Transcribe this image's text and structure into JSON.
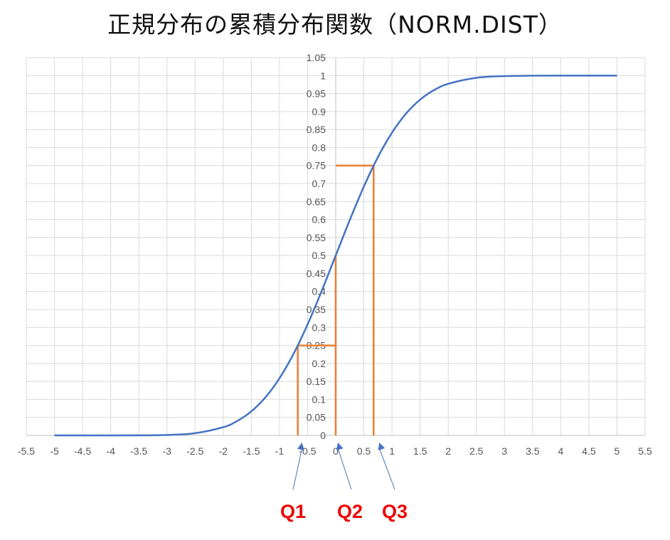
{
  "chart_data": {
    "type": "line",
    "title": "正規分布の累積分布関数（NORM.DIST）",
    "xlabel": "",
    "ylabel": "",
    "xlim": [
      -5.5,
      5.5
    ],
    "ylim": [
      0,
      1.05
    ],
    "grid": true,
    "x_ticks": [
      "-5.5",
      "-5",
      "-4.5",
      "-4",
      "-3.5",
      "-3",
      "-2.5",
      "-2",
      "-1.5",
      "-1",
      "-0.5",
      "0",
      "0.5",
      "1",
      "1.5",
      "2",
      "2.5",
      "3",
      "3.5",
      "4",
      "4.5",
      "5",
      "5.5"
    ],
    "y_ticks": [
      "0",
      "0.05",
      "0.1",
      "0.15",
      "0.2",
      "0.25",
      "0.3",
      "0.35",
      "0.4",
      "0.45",
      "0.5",
      "0.55",
      "0.6",
      "0.65",
      "0.7",
      "0.75",
      "0.8",
      "0.85",
      "0.9",
      "0.95",
      "1",
      "1.05"
    ],
    "series": [
      {
        "color": "#4472c4",
        "x": [
          -5,
          -4.5,
          -4,
          -3.5,
          -3,
          -2.5,
          -2,
          -1.75,
          -1.5,
          -1.25,
          -1,
          -0.75,
          -0.5,
          -0.25,
          0,
          0.25,
          0.5,
          0.75,
          1,
          1.25,
          1.5,
          1.75,
          2,
          2.5,
          3,
          3.5,
          4,
          4.5,
          5
        ],
        "y": [
          0.0,
          0.0,
          0.0,
          0.0002,
          0.0013,
          0.0062,
          0.0228,
          0.0401,
          0.0668,
          0.1056,
          0.1587,
          0.2266,
          0.3085,
          0.4013,
          0.5,
          0.5987,
          0.6915,
          0.7734,
          0.8413,
          0.8944,
          0.9332,
          0.9599,
          0.9772,
          0.9938,
          0.9987,
          0.9998,
          1.0,
          1.0,
          1.0
        ]
      }
    ],
    "quartiles": [
      {
        "label": "Q1",
        "x": -0.674,
        "y": 0.25
      },
      {
        "label": "Q2",
        "x": 0,
        "y": 0.5
      },
      {
        "label": "Q3",
        "x": 0.674,
        "y": 0.75
      }
    ],
    "colors": {
      "curve": "#4472c4",
      "quartile_lines": "#ed7d31",
      "arrows": "#4472c4",
      "quartile_labels": "#ee0000",
      "grid": "#d9d9d9"
    }
  }
}
